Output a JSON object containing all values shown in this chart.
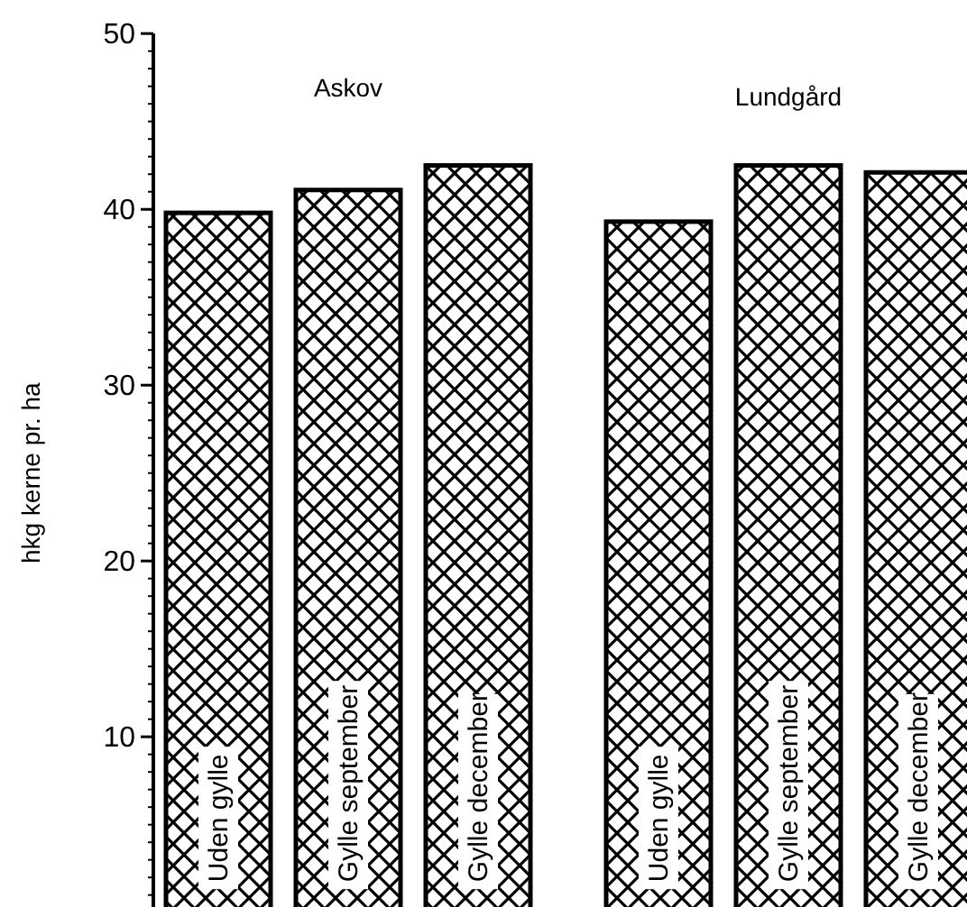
{
  "chart_data": {
    "type": "bar",
    "ylabel": "hkg kerne pr. ha",
    "categories": [
      "Uden gylle",
      "Gylle september",
      "Gylle december",
      "Uden gylle",
      "Gylle september",
      "Gylle december"
    ],
    "values": [
      39.8,
      41.1,
      42.5,
      39.3,
      42.5,
      42.1
    ],
    "color": "#000000",
    "ylim": [
      0,
      50
    ],
    "yticks": [
      10,
      20,
      30,
      40,
      50
    ],
    "grid": false,
    "annotations": [
      "Askov",
      "Lundgård"
    ]
  }
}
